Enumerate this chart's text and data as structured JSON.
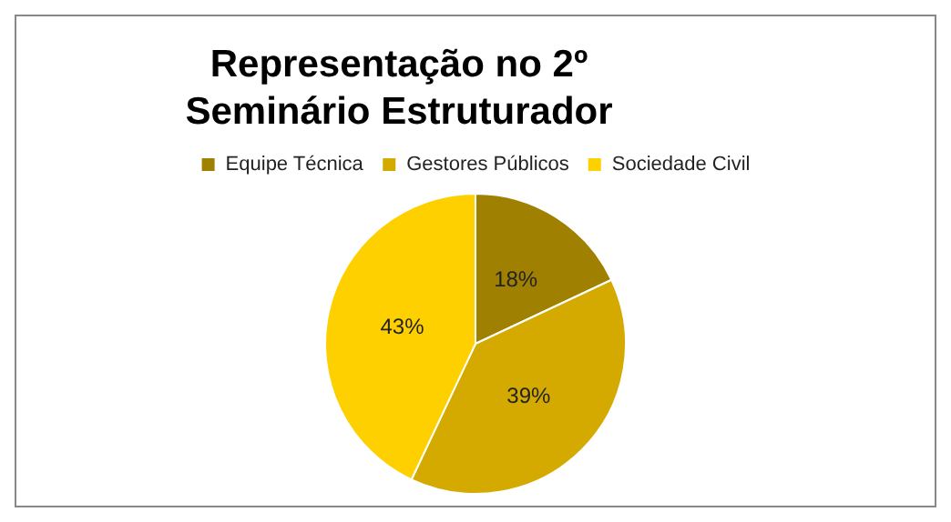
{
  "chart_data": {
    "type": "pie",
    "title": "Representação no 2º Seminário Estruturador",
    "categories": [
      "Equipe Técnica",
      "Gestores Públicos",
      "Sociedade Civil"
    ],
    "values": [
      18,
      39,
      43
    ],
    "value_labels": [
      "18%",
      "39%",
      "43%"
    ],
    "colors": [
      "#a08000",
      "#d4aa00",
      "#ffd000"
    ],
    "legend": "top"
  }
}
